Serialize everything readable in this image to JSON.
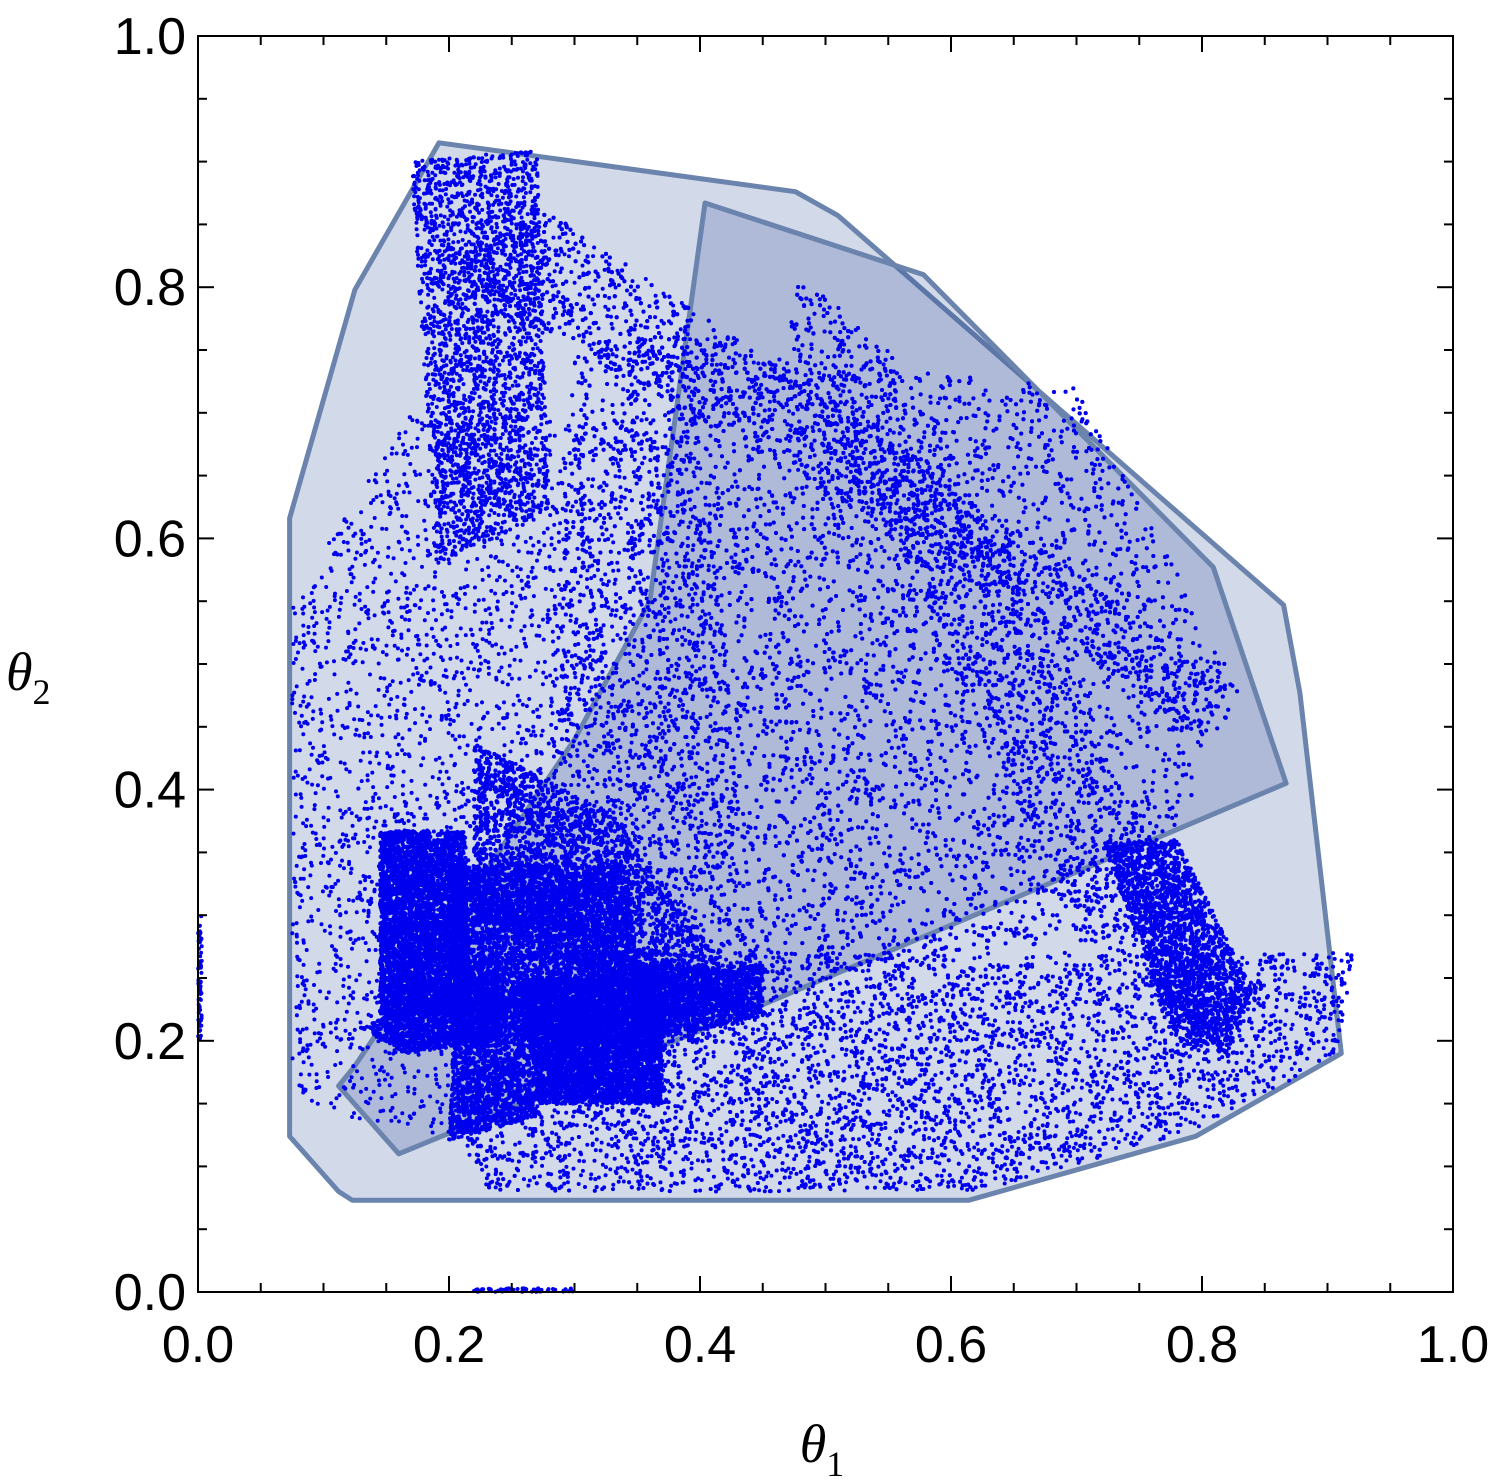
{
  "chart_data": {
    "type": "scatter",
    "xlabel": "θ",
    "xlabel_sub": "1",
    "ylabel": "θ",
    "ylabel_sub": "2",
    "xlim": [
      0,
      1
    ],
    "ylim": [
      0,
      1
    ],
    "x_ticks": [
      "0.0",
      "0.2",
      "0.4",
      "0.6",
      "0.8",
      "1.0"
    ],
    "y_ticks": [
      "0.0",
      "0.2",
      "0.4",
      "0.6",
      "0.8",
      "1.0"
    ],
    "grid": false,
    "legend": "none",
    "colors": {
      "points": "#0000ee",
      "region_fill": "#1f3f8f",
      "region_stroke": "#6b84ad"
    },
    "regions": [
      {
        "polygon": [
          [
            0.073,
            0.124
          ],
          [
            0.073,
            0.616
          ],
          [
            0.125,
            0.798
          ],
          [
            0.192,
            0.915
          ],
          [
            0.476,
            0.876
          ],
          [
            0.51,
            0.857
          ],
          [
            0.865,
            0.547
          ],
          [
            0.878,
            0.477
          ],
          [
            0.911,
            0.19
          ],
          [
            0.795,
            0.124
          ],
          [
            0.614,
            0.073
          ],
          [
            0.123,
            0.073
          ],
          [
            0.112,
            0.08
          ]
        ]
      },
      {
        "polygon": [
          [
            0.404,
            0.867
          ],
          [
            0.578,
            0.81
          ],
          [
            0.809,
            0.577
          ],
          [
            0.867,
            0.405
          ],
          [
            0.446,
            0.227
          ],
          [
            0.16,
            0.11
          ],
          [
            0.112,
            0.164
          ],
          [
            0.125,
            0.18
          ],
          [
            0.3,
            0.44
          ],
          [
            0.36,
            0.55
          ]
        ]
      }
    ],
    "point_clusters": [
      {
        "polygon": [
          [
            0.2,
            0.82
          ],
          [
            0.28,
            0.86
          ],
          [
            0.72,
            0.56
          ],
          [
            0.82,
            0.48
          ],
          [
            0.8,
            0.44
          ],
          [
            0.6,
            0.58
          ],
          [
            0.25,
            0.78
          ]
        ],
        "count": 3500
      },
      {
        "polygon": [
          [
            0.48,
            0.81
          ],
          [
            0.56,
            0.74
          ],
          [
            0.82,
            0.24
          ],
          [
            0.8,
            0.2
          ],
          [
            0.7,
            0.3
          ],
          [
            0.52,
            0.64
          ],
          [
            0.47,
            0.76
          ]
        ],
        "count": 3000
      },
      {
        "polygon": [
          [
            0.3,
            0.76
          ],
          [
            0.7,
            0.72
          ],
          [
            0.83,
            0.48
          ],
          [
            0.74,
            0.28
          ],
          [
            0.4,
            0.26
          ],
          [
            0.28,
            0.42
          ]
        ],
        "count": 9000
      },
      {
        "polygon": [
          [
            0.17,
            0.9
          ],
          [
            0.27,
            0.91
          ],
          [
            0.28,
            0.62
          ],
          [
            0.19,
            0.58
          ]
        ],
        "count": 2500
      },
      {
        "polygon": [
          [
            0.075,
            0.55
          ],
          [
            0.17,
            0.7
          ],
          [
            0.4,
            0.7
          ],
          [
            0.45,
            0.22
          ],
          [
            0.2,
            0.12
          ],
          [
            0.075,
            0.15
          ]
        ],
        "count": 3500
      },
      {
        "polygon": [
          [
            0.35,
            0.27
          ],
          [
            0.92,
            0.27
          ],
          [
            0.91,
            0.19
          ],
          [
            0.8,
            0.13
          ],
          [
            0.62,
            0.08
          ],
          [
            0.23,
            0.08
          ],
          [
            0.2,
            0.14
          ]
        ],
        "count": 5500
      },
      {
        "polygon": [
          [
            0.72,
            0.36
          ],
          [
            0.78,
            0.36
          ],
          [
            0.84,
            0.24
          ],
          [
            0.82,
            0.19
          ],
          [
            0.78,
            0.2
          ]
        ],
        "count": 2000
      },
      {
        "polygon": [
          [
            0.145,
            0.367
          ],
          [
            0.213,
            0.367
          ],
          [
            0.217,
            0.22
          ],
          [
            0.145,
            0.22
          ]
        ],
        "count": 4500
      },
      {
        "polygon": [
          [
            0.22,
            0.437
          ],
          [
            0.33,
            0.38
          ],
          [
            0.44,
            0.23
          ],
          [
            0.38,
            0.22
          ],
          [
            0.22,
            0.3
          ]
        ],
        "count": 6000
      },
      {
        "polygon": [
          [
            0.2,
            0.34
          ],
          [
            0.34,
            0.34
          ],
          [
            0.36,
            0.2
          ],
          [
            0.26,
            0.2
          ],
          [
            0.2,
            0.25
          ]
        ],
        "count": 5000
      },
      {
        "polygon": [
          [
            0.26,
            0.25
          ],
          [
            0.37,
            0.25
          ],
          [
            0.37,
            0.15
          ],
          [
            0.27,
            0.15
          ]
        ],
        "count": 4500
      },
      {
        "polygon": [
          [
            0.205,
            0.24
          ],
          [
            0.27,
            0.24
          ],
          [
            0.27,
            0.14
          ],
          [
            0.2,
            0.12
          ]
        ],
        "count": 1800
      },
      {
        "polygon": [
          [
            0.13,
            0.21
          ],
          [
            0.24,
            0.26
          ],
          [
            0.24,
            0.2
          ],
          [
            0.165,
            0.19
          ]
        ],
        "count": 1500
      },
      {
        "polygon": [
          [
            0.35,
            0.26
          ],
          [
            0.45,
            0.26
          ],
          [
            0.45,
            0.22
          ],
          [
            0.36,
            0.2
          ]
        ],
        "count": 1500
      },
      {
        "polygon": [
          [
            0.0,
            0.3
          ],
          [
            0.003,
            0.3
          ],
          [
            0.003,
            0.2
          ],
          [
            0.0,
            0.2
          ]
        ],
        "count": 60
      },
      {
        "polygon": [
          [
            0.22,
            0.0
          ],
          [
            0.3,
            0.0
          ],
          [
            0.3,
            0.003
          ],
          [
            0.22,
            0.003
          ]
        ],
        "count": 60
      }
    ]
  }
}
